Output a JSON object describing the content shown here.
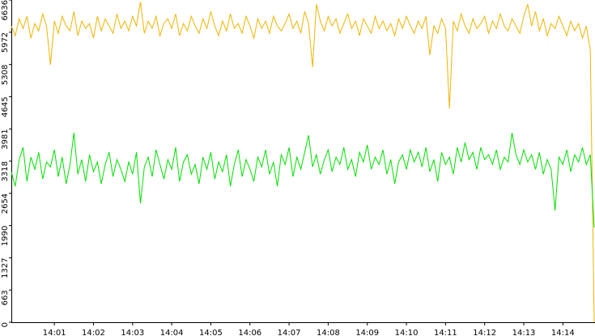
{
  "chart_data": {
    "type": "line",
    "series": [
      {
        "name": null,
        "color": "#f0b400",
        "values": [
          6100,
          5900,
          6250,
          6050,
          6300,
          5850,
          6150,
          6000,
          6350,
          6100,
          5300,
          6200,
          5950,
          6300,
          6100,
          6000,
          6400,
          5900,
          6200,
          6050,
          6150,
          5850,
          6300,
          6000,
          6250,
          6100,
          5950,
          6350,
          6050,
          6200,
          6000,
          6300,
          6100,
          6600,
          5950,
          6200,
          6050,
          6300,
          5900,
          6150,
          6250,
          6050,
          6350,
          5900,
          6150,
          6000,
          6300,
          6100,
          5950,
          6250,
          6050,
          6400,
          6100,
          5900,
          6200,
          6000,
          6350,
          6050,
          6150,
          5950,
          6300,
          6100,
          5850,
          6250,
          6050,
          6200,
          5950,
          6300,
          6100,
          6000,
          6150,
          6350,
          6050,
          6200,
          5950,
          6400,
          6150,
          5250,
          6550,
          6200,
          6000,
          6300,
          6100,
          6250,
          5950,
          6150,
          6350,
          6050,
          6200,
          5900,
          6250,
          6100,
          5950,
          6300,
          6050,
          6200,
          6000,
          6150,
          5900,
          6250,
          6050,
          6300,
          6100,
          5950,
          6200,
          6050,
          6300,
          5500,
          6100,
          5950,
          6250,
          6050,
          4400,
          6200,
          6000,
          6350,
          6100,
          5950,
          6250,
          6050,
          6150,
          6300,
          5950,
          6200,
          6050,
          6350,
          6100,
          6000,
          6250,
          6100,
          5950,
          6300,
          6550,
          6100,
          6400,
          6000,
          6250,
          5900,
          6150,
          6050,
          6300,
          6100,
          5900,
          6200,
          6000,
          6150,
          5850,
          6100,
          5600,
          0
        ]
      },
      {
        "name": null,
        "color": "#00e000",
        "values": [
          3100,
          2800,
          3350,
          3600,
          2900,
          3400,
          3150,
          3500,
          2950,
          3300,
          3200,
          3550,
          3000,
          3400,
          2850,
          3250,
          3900,
          3050,
          3350,
          2900,
          3450,
          3100,
          3300,
          2850,
          3250,
          3500,
          3000,
          3350,
          3150,
          2900,
          3300,
          3050,
          3500,
          2450,
          3200,
          3400,
          3000,
          3550,
          3250,
          2950,
          3350,
          3150,
          3600,
          2900,
          3300,
          3450,
          3050,
          3250,
          2850,
          3400,
          3150,
          3500,
          2950,
          3300,
          3100,
          3450,
          2800,
          3250,
          3550,
          3000,
          3350,
          3150,
          2900,
          3400,
          3200,
          3550,
          3050,
          3300,
          2800,
          3450,
          3250,
          3600,
          3000,
          3400,
          3150,
          3500,
          3850,
          3200,
          3450,
          3050,
          3350,
          3550,
          3100,
          3400,
          3250,
          3600,
          3150,
          3350,
          3000,
          3500,
          3300,
          3650,
          3150,
          3400,
          3250,
          3550,
          3050,
          3350,
          2850,
          3300,
          3450,
          3150,
          3550,
          3300,
          3500,
          3200,
          3600,
          3100,
          3350,
          2900,
          3500,
          3250,
          3400,
          3050,
          3600,
          3300,
          3700,
          3350,
          3500,
          3150,
          3600,
          3350,
          3450,
          3250,
          3550,
          3150,
          3400,
          3300,
          3900,
          3450,
          3250,
          3550,
          3300,
          3450,
          3150,
          3500,
          3050,
          3350,
          3150,
          2300,
          3400,
          3250,
          3550,
          3100,
          3450,
          3300,
          3600,
          3250,
          3450,
          1950
        ]
      }
    ],
    "xlim": [
      0,
      149
    ],
    "xticks": [
      {
        "value": 11,
        "label": "14:01"
      },
      {
        "value": 21,
        "label": "14:02"
      },
      {
        "value": 31,
        "label": "14:03"
      },
      {
        "value": 41,
        "label": "14:04"
      },
      {
        "value": 51,
        "label": "14:05"
      },
      {
        "value": 61,
        "label": "14:06"
      },
      {
        "value": 71,
        "label": "14:07"
      },
      {
        "value": 81,
        "label": "14:08"
      },
      {
        "value": 91,
        "label": "14:09"
      },
      {
        "value": 101,
        "label": "14:10"
      },
      {
        "value": 111,
        "label": "14:11"
      },
      {
        "value": 121,
        "label": "14:12"
      },
      {
        "value": 131,
        "label": "14:13"
      },
      {
        "value": 141,
        "label": "14:14"
      }
    ],
    "ylim": [
      0,
      6636
    ],
    "yticks": [
      0,
      663,
      1327,
      1990,
      2654,
      3318,
      3981,
      4645,
      5308,
      5972,
      6636
    ]
  }
}
